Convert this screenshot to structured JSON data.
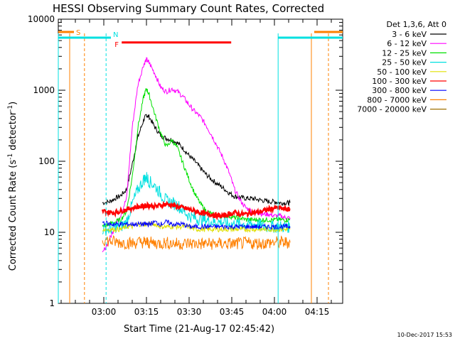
{
  "chart_data": {
    "type": "line",
    "title": "HESSI Observing Summary Count Rates, Corrected",
    "xlabel": "Start Time (21-Aug-17 02:45:42)",
    "ylabel": "Corrected Count Rate (s⁻¹ detector⁻¹)",
    "yscale": "log",
    "xlim_minutes": [
      -16,
      84
    ],
    "ylim": [
      1,
      10000
    ],
    "x_ticks": [
      {
        "minutes": 0,
        "label": "03:00"
      },
      {
        "minutes": 15,
        "label": "03:15"
      },
      {
        "minutes": 30,
        "label": "03:30"
      },
      {
        "minutes": 45,
        "label": "03:45"
      },
      {
        "minutes": 60,
        "label": "04:00"
      },
      {
        "minutes": 75,
        "label": "04:15"
      }
    ],
    "y_ticks": [
      {
        "value": 1,
        "label": "1"
      },
      {
        "value": 10,
        "label": "10"
      },
      {
        "value": 100,
        "label": "100"
      },
      {
        "value": 1000,
        "label": "1000"
      },
      {
        "value": 10000,
        "label": "10000"
      }
    ],
    "legend_header": "Det 1,3,6, Att 0",
    "legend_position": "right",
    "footer_date": "10-Dec-2017 15:53",
    "series": [
      {
        "name": "3 - 6 keV",
        "color": "#000000",
        "x": [
          -0.5,
          2,
          4,
          6,
          8,
          10,
          12,
          14,
          15,
          16,
          18,
          20,
          22,
          24,
          26,
          28,
          30,
          32,
          34,
          36,
          38,
          40,
          42,
          44,
          46,
          48,
          50,
          52,
          54,
          56,
          58,
          60,
          62,
          64,
          65.5
        ],
        "y": [
          26,
          27,
          30,
          33,
          40,
          90,
          220,
          380,
          450,
          420,
          300,
          230,
          210,
          200,
          180,
          150,
          120,
          100,
          80,
          65,
          55,
          48,
          42,
          36,
          32,
          31,
          30,
          30,
          29,
          28,
          27,
          27,
          26,
          26,
          26
        ]
      },
      {
        "name": "6 - 12 keV",
        "color": "#ff00ff",
        "x": [
          -0.5,
          2,
          4,
          6,
          8,
          10,
          12,
          14,
          15,
          16,
          18,
          20,
          22,
          24,
          26,
          28,
          30,
          32,
          34,
          36,
          38,
          40,
          42,
          44,
          46,
          48,
          50,
          52,
          54,
          56,
          58,
          60,
          62,
          64,
          65.5
        ],
        "y": [
          5,
          8,
          12,
          18,
          30,
          300,
          1200,
          2300,
          2700,
          2400,
          1700,
          1100,
          950,
          1050,
          950,
          800,
          620,
          500,
          420,
          320,
          230,
          160,
          110,
          70,
          40,
          28,
          22,
          20,
          19,
          18,
          18,
          17,
          17,
          16,
          16
        ]
      },
      {
        "name": "12 - 25 keV",
        "color": "#00e000",
        "x": [
          -0.5,
          2,
          4,
          6,
          8,
          10,
          12,
          14,
          15,
          16,
          18,
          20,
          22,
          24,
          26,
          28,
          30,
          32,
          34,
          36,
          38,
          40,
          42,
          44,
          46,
          48,
          50,
          52,
          54,
          56,
          58,
          60,
          62,
          64,
          65.5
        ],
        "y": [
          12,
          13,
          14,
          15,
          20,
          60,
          300,
          800,
          1050,
          850,
          450,
          250,
          160,
          200,
          150,
          90,
          55,
          35,
          25,
          20,
          18,
          17,
          17,
          17,
          16,
          16,
          15,
          15,
          15,
          15,
          15,
          15,
          15,
          15,
          15
        ]
      },
      {
        "name": "25 - 50 keV",
        "color": "#00e0e0",
        "x": [
          -0.5,
          2,
          4,
          6,
          8,
          10,
          12,
          14,
          15,
          16,
          18,
          20,
          22,
          24,
          26,
          28,
          30,
          32,
          34,
          36,
          38,
          40,
          42,
          44,
          46,
          48,
          50,
          52,
          54,
          56,
          58,
          60,
          62,
          64,
          65.5
        ],
        "y": [
          11,
          11,
          12,
          12,
          14,
          25,
          40,
          55,
          60,
          52,
          45,
          35,
          28,
          26,
          24,
          20,
          17,
          16,
          15,
          15,
          14,
          14,
          14,
          13,
          13,
          13,
          13,
          13,
          13,
          12,
          12,
          12,
          12,
          12,
          12
        ]
      },
      {
        "name": "50 - 100 keV",
        "color": "#e0e000",
        "x": [
          -0.5,
          2,
          4,
          6,
          8,
          10,
          12,
          14,
          15,
          16,
          18,
          20,
          22,
          24,
          26,
          28,
          30,
          32,
          34,
          36,
          38,
          40,
          42,
          44,
          46,
          48,
          50,
          52,
          54,
          56,
          58,
          60,
          62,
          64,
          65.5
        ],
        "y": [
          11,
          11,
          11,
          11,
          12,
          12,
          13,
          13,
          13,
          13,
          13,
          12,
          12,
          12,
          12,
          12,
          12,
          11,
          11,
          11,
          11,
          11,
          11,
          11,
          11,
          11,
          11,
          11,
          11,
          11,
          11,
          11,
          11,
          11,
          11
        ]
      },
      {
        "name": "100 - 300 keV",
        "color": "#ff0000",
        "x": [
          -0.5,
          2,
          4,
          6,
          8,
          10,
          12,
          14,
          15,
          16,
          18,
          20,
          22,
          24,
          26,
          28,
          30,
          32,
          34,
          36,
          38,
          40,
          42,
          44,
          46,
          48,
          50,
          52,
          54,
          56,
          58,
          60,
          62,
          64,
          65.5
        ],
        "y": [
          20,
          19,
          19,
          20,
          21,
          22,
          23,
          23,
          24,
          24,
          23,
          24,
          25,
          24,
          23,
          22,
          21,
          20,
          19,
          18,
          18,
          17,
          17,
          18,
          19,
          18,
          18,
          19,
          19,
          20,
          21,
          22,
          22,
          21,
          21
        ]
      },
      {
        "name": "300 - 800 keV",
        "color": "#0000ff",
        "x": [
          -0.5,
          2,
          4,
          6,
          8,
          10,
          12,
          14,
          15,
          16,
          18,
          20,
          22,
          24,
          26,
          28,
          30,
          32,
          34,
          36,
          38,
          40,
          42,
          44,
          46,
          48,
          50,
          52,
          54,
          56,
          58,
          60,
          62,
          64,
          65.5
        ],
        "y": [
          14,
          13,
          13,
          13,
          13,
          13,
          13,
          13,
          13,
          13,
          14,
          13,
          14,
          13,
          13,
          13,
          12,
          12,
          12,
          12,
          12,
          12,
          12,
          12,
          12,
          12,
          12,
          12,
          12,
          12,
          12,
          12,
          12,
          12,
          12
        ]
      },
      {
        "name": "800 - 7000 keV",
        "color": "#ff8000",
        "x": [
          -0.5,
          2,
          4,
          6,
          8,
          10,
          12,
          14,
          15,
          16,
          18,
          20,
          22,
          24,
          26,
          28,
          30,
          32,
          34,
          36,
          38,
          40,
          42,
          44,
          46,
          48,
          50,
          52,
          54,
          56,
          58,
          60,
          62,
          64,
          65.5
        ],
        "y": [
          8,
          7.5,
          7.3,
          7.2,
          7.1,
          7,
          7.2,
          7.3,
          7.2,
          7.1,
          7,
          7,
          7.1,
          7,
          6.9,
          6.9,
          7,
          6.9,
          6.9,
          6.9,
          6.9,
          6.9,
          6.9,
          6.9,
          6.9,
          7,
          7,
          7,
          7,
          7,
          7.1,
          7.2,
          7.2,
          7.2,
          7.2
        ]
      },
      {
        "name": "7000 - 20000 keV",
        "color": "#a07000",
        "x": [],
        "y": []
      }
    ],
    "markers": {
      "s_label": "S",
      "n_label": "N",
      "f_label": "F",
      "s_color": "#ff8000",
      "n_color": "#00e0e0",
      "f_color": "#ff0000",
      "saa_intervals": [
        [
          -16,
          -10.5
        ],
        [
          74,
          84
        ]
      ],
      "night_intervals": [
        [
          -16,
          2.5
        ],
        [
          61.3,
          84
        ]
      ],
      "flare_interval": [
        6.3,
        44.8
      ],
      "saa_start_lines": [
        -12,
        73
      ],
      "saa_end_lines": [
        -6.8,
        79
      ],
      "night_lines": [
        -16,
        0.8,
        61.3,
        79
      ]
    }
  }
}
